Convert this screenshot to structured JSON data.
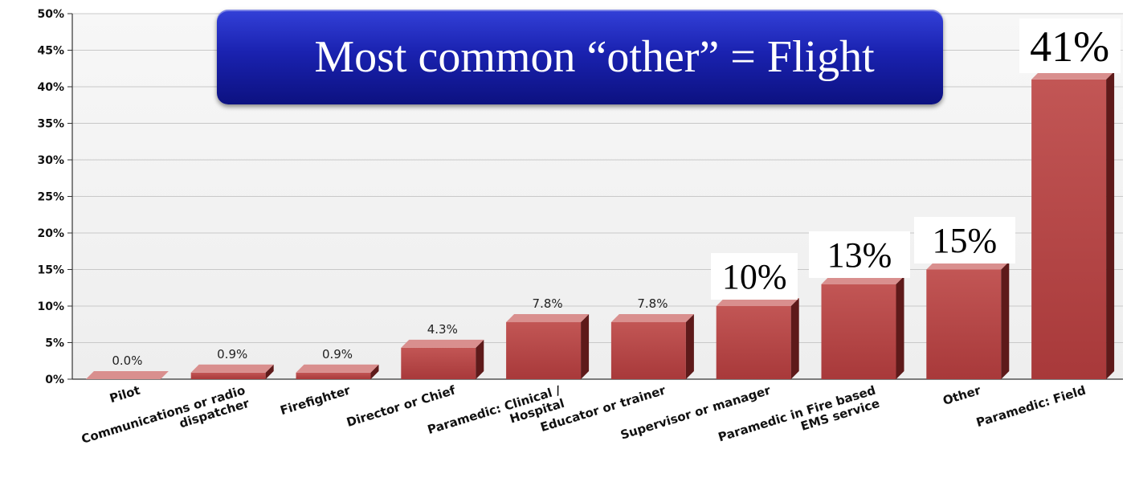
{
  "callout": {
    "text": "Most common “other” = Flight"
  },
  "highlight_labels": [
    "10%",
    "13%",
    "15%",
    "41%"
  ],
  "colors": {
    "bar_front": "#a8393a",
    "bar_top": "#d98f8e",
    "bar_side": "#5e1a1a",
    "callout_bg": "#1a22b0",
    "plot_bg": "#eeeeee"
  },
  "chart_data": {
    "type": "bar",
    "title": "",
    "xlabel": "",
    "ylabel": "",
    "ylim": [
      0,
      50
    ],
    "yticks": [
      "0%",
      "5%",
      "10%",
      "15%",
      "20%",
      "25%",
      "30%",
      "35%",
      "40%",
      "45%",
      "50%"
    ],
    "grid": true,
    "categories": [
      "Pilot",
      "Communications or radio dispatcher",
      "Firefighter",
      "Director or Chief",
      "Paramedic: Clinical / Hospital",
      "Educator or trainer",
      "Supervisor or manager",
      "Paramedic in Fire based EMS service",
      "Other",
      "Paramedic: Field"
    ],
    "category_lines": [
      [
        "Pilot"
      ],
      [
        "Communications or radio",
        "dispatcher"
      ],
      [
        "Firefighter"
      ],
      [
        "Director or Chief"
      ],
      [
        "Paramedic: Clinical /",
        "Hospital"
      ],
      [
        "Educator or trainer"
      ],
      [
        "Supervisor or manager"
      ],
      [
        "Paramedic in Fire based",
        "EMS service"
      ],
      [
        "Other"
      ],
      [
        "Paramedic: Field"
      ]
    ],
    "values": [
      0.0,
      0.9,
      0.9,
      4.3,
      7.8,
      7.8,
      10,
      13,
      15,
      41
    ],
    "data_labels": [
      "0.0%",
      "0.9%",
      "0.9%",
      "4.3%",
      "7.8%",
      "7.8%",
      "",
      "",
      "",
      ""
    ]
  }
}
